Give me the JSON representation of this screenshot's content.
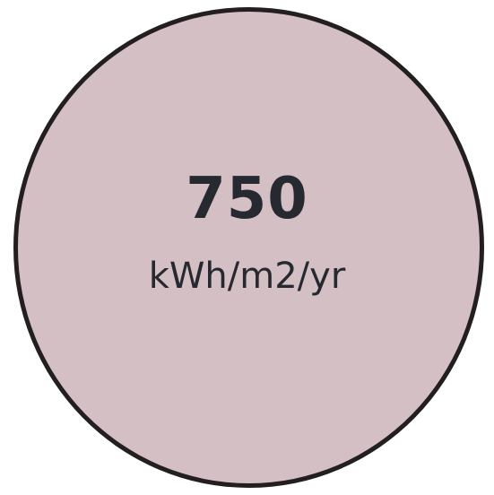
{
  "metric": {
    "value": "750",
    "unit": "kWh/m2/yr"
  },
  "colors": {
    "fill": "#d3bfc4",
    "outline": "#231f20",
    "text": "#262a30"
  }
}
